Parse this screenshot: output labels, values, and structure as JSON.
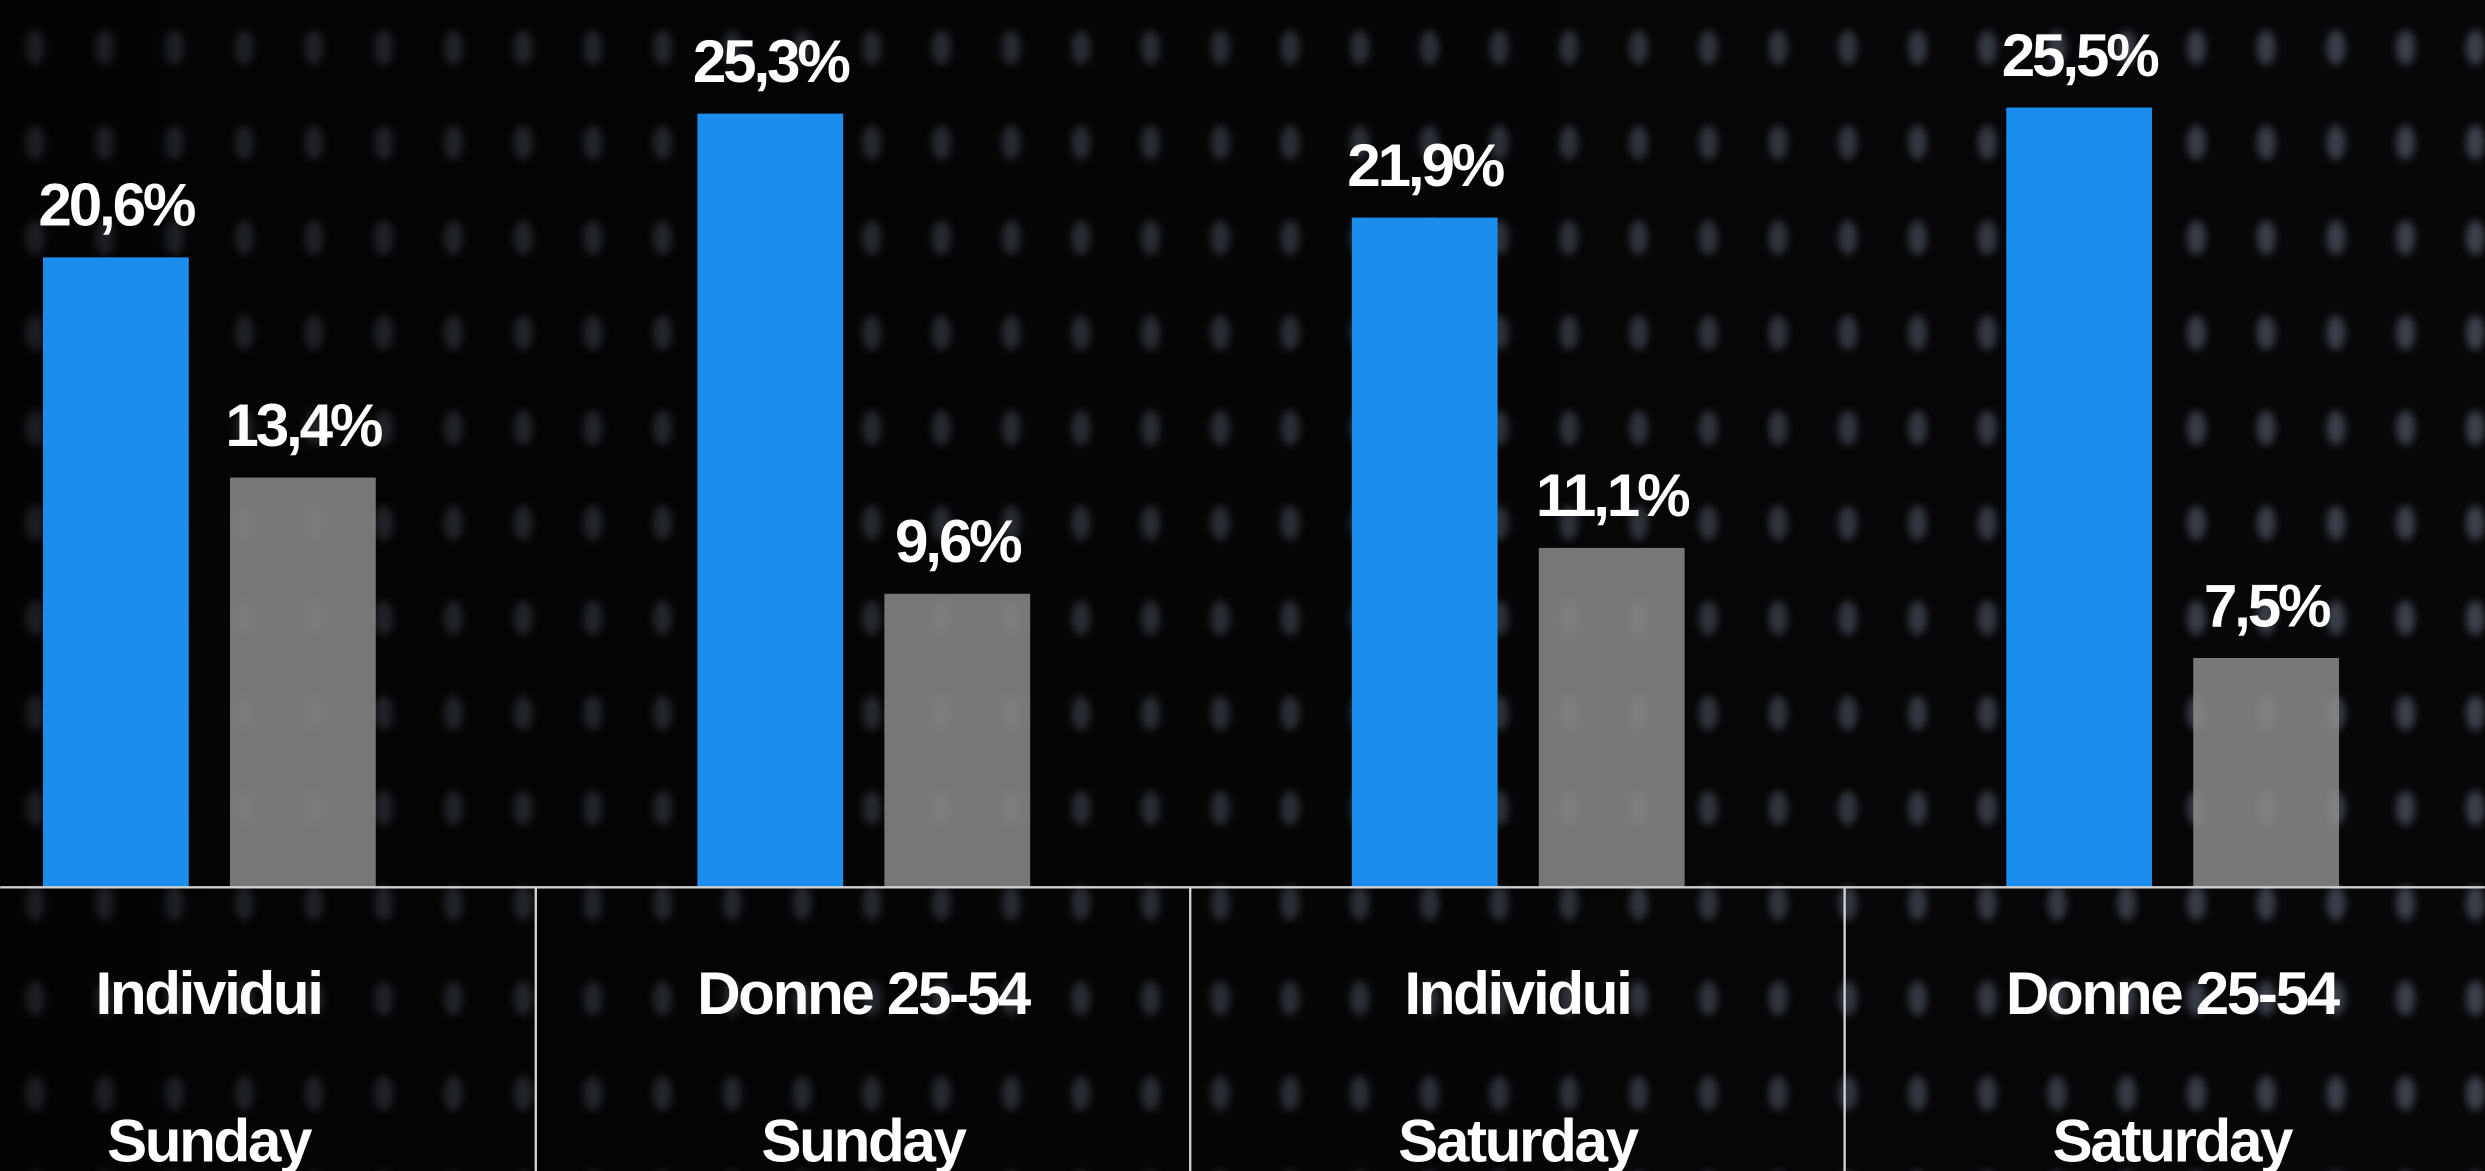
{
  "chart_data": {
    "type": "bar",
    "categories": [
      "Individui",
      "Donne 25-54",
      "Individui",
      "Donne 25-54"
    ],
    "groups": [
      "Sunday",
      "Sunday",
      "Saturday",
      "Saturday"
    ],
    "series": [
      {
        "color": "#1a8ded",
        "values": [
          20.6,
          25.3,
          21.9,
          25.5
        ],
        "value_labels": [
          "20,6%",
          "25,3%",
          "21,9%",
          "25,5%"
        ]
      },
      {
        "color": "#8c8c8c",
        "values": [
          13.4,
          9.6,
          11.1,
          7.5
        ],
        "value_labels": [
          "13,4%",
          "9,6%",
          "11,1%",
          "7,5%"
        ]
      }
    ]
  }
}
